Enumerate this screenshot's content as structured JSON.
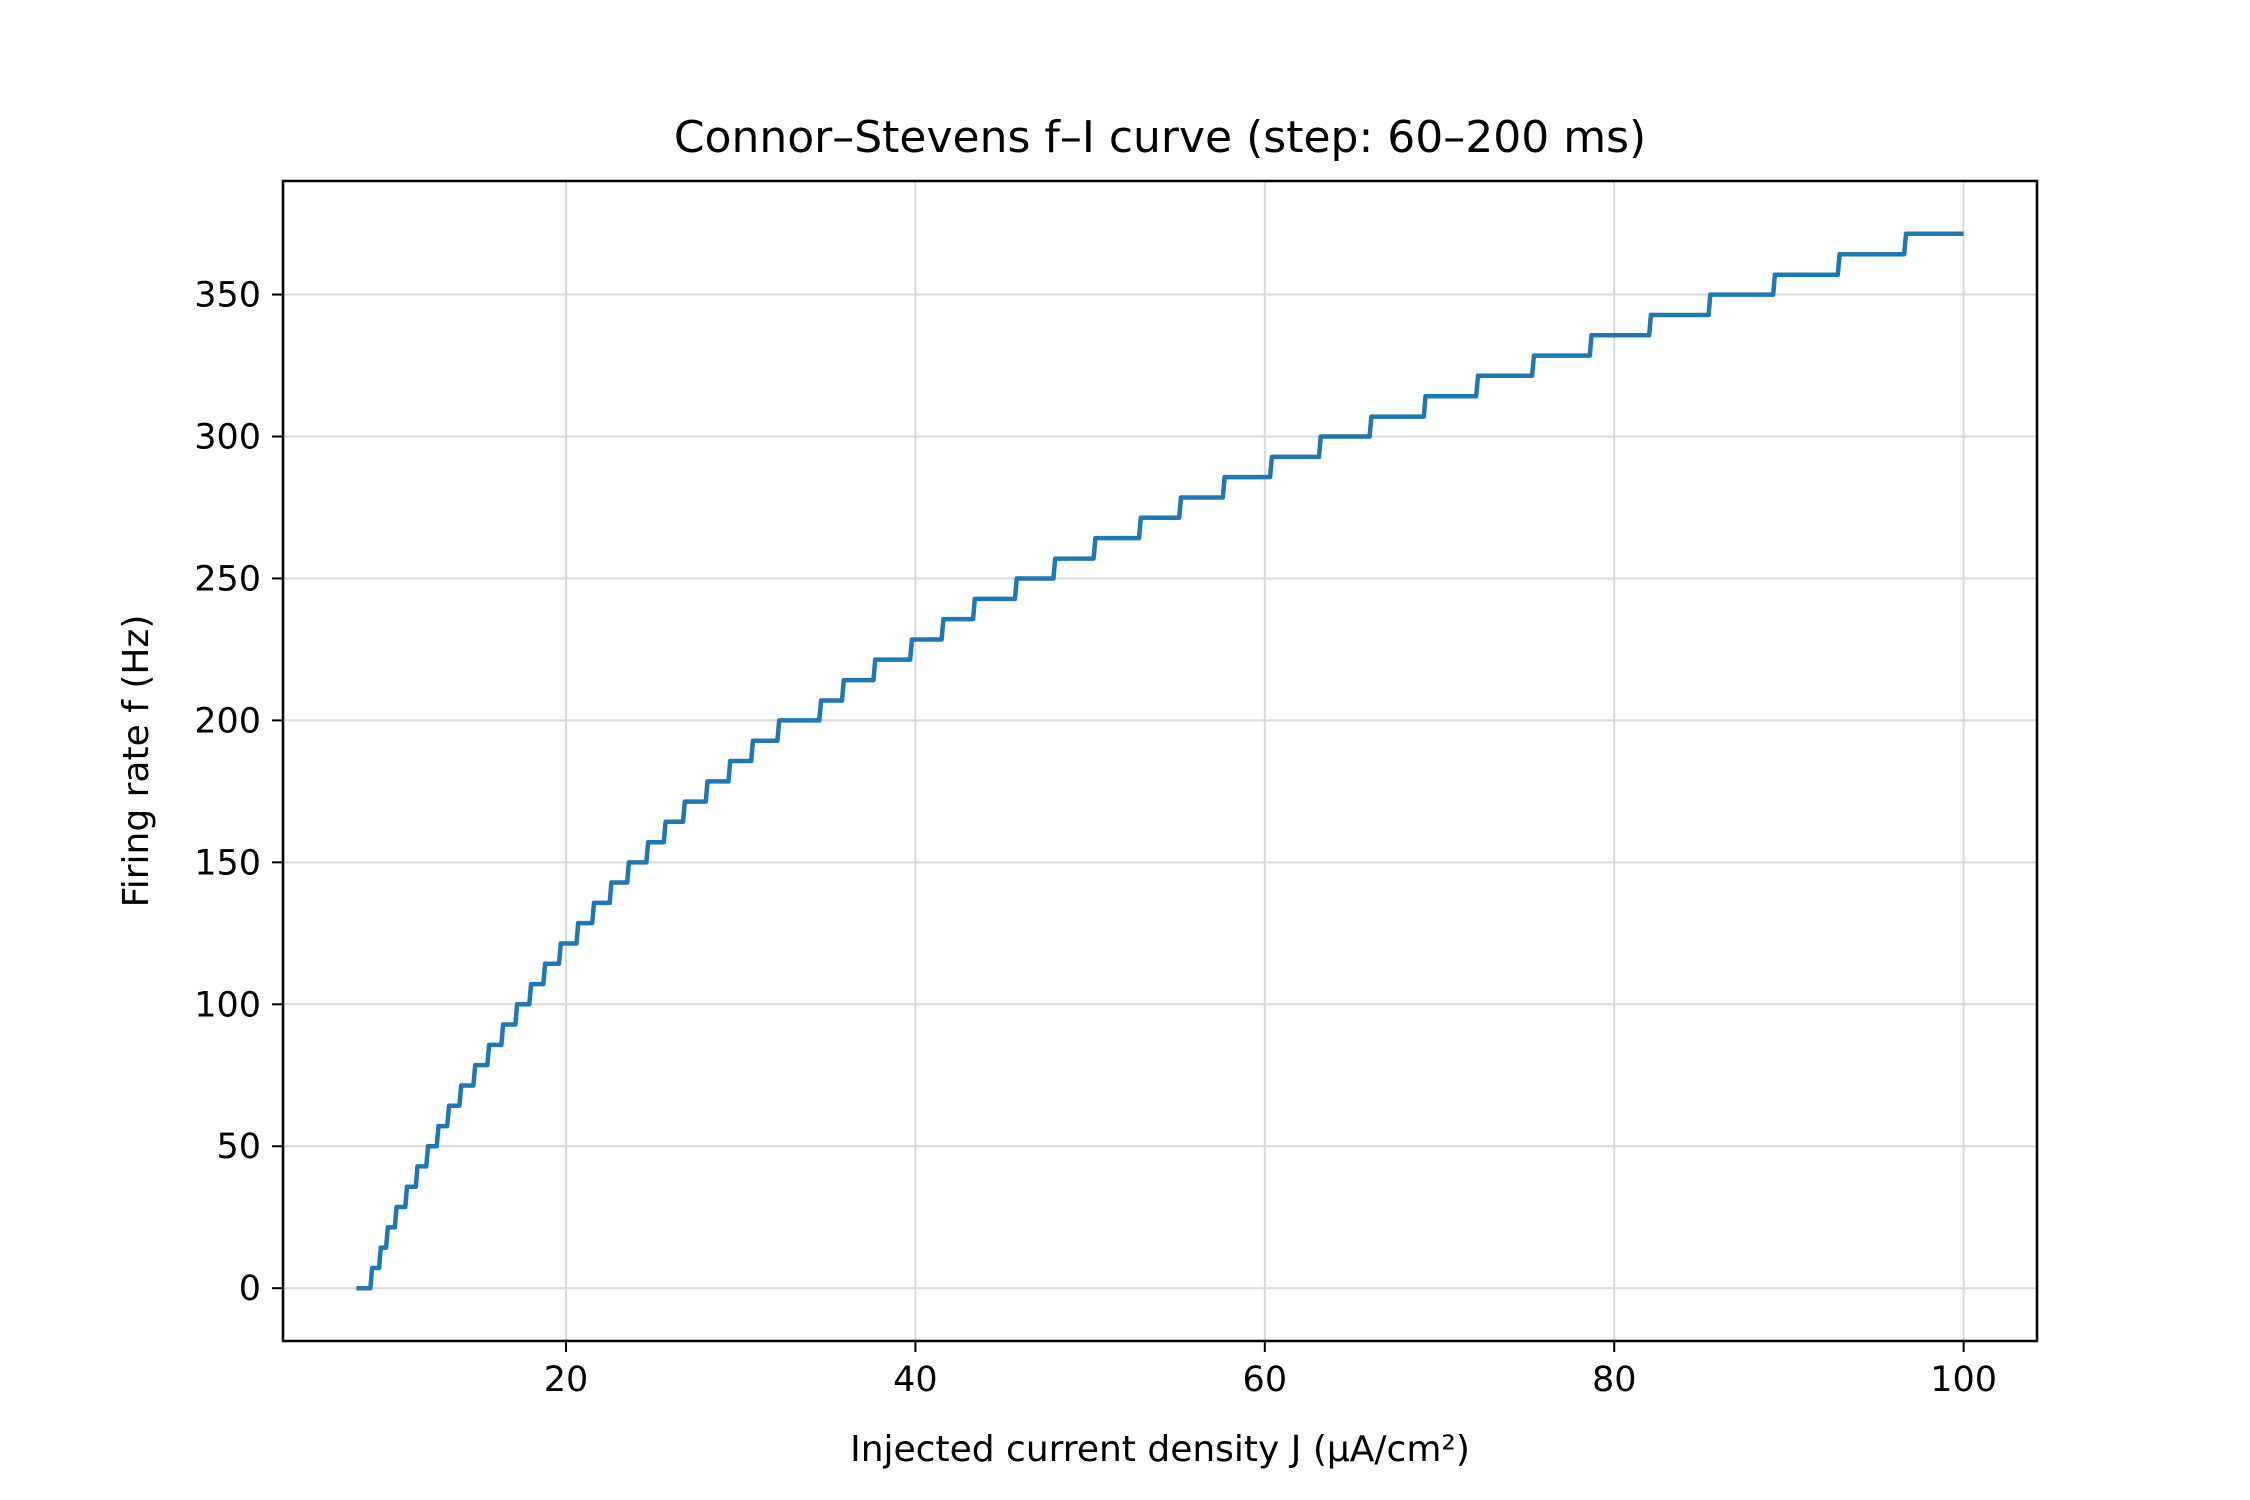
{
  "chart_data": {
    "type": "line",
    "title": "Connor–Stevens f–I curve (step: 60–200 ms)",
    "xlabel": "Injected current density J (μA/cm²)",
    "ylabel": "Firing rate f (Hz)",
    "xlim": [
      3.8,
      104.2
    ],
    "ylim": [
      -18.6,
      390
    ],
    "xticks": [
      20,
      40,
      60,
      80,
      100
    ],
    "yticks": [
      0,
      50,
      100,
      150,
      200,
      250,
      300,
      350
    ],
    "grid": true,
    "series_color": "#1f77b4",
    "series": [
      {
        "points": [
          [
            8.0,
            0
          ],
          [
            8.8,
            0
          ],
          [
            8.9,
            7.1
          ],
          [
            9.3,
            7.1
          ],
          [
            9.4,
            14.3
          ],
          [
            9.7,
            14.3
          ],
          [
            9.8,
            21.4
          ],
          [
            10.2,
            21.4
          ],
          [
            10.3,
            28.6
          ],
          [
            10.8,
            28.6
          ],
          [
            10.9,
            35.7
          ],
          [
            11.4,
            35.7
          ],
          [
            11.5,
            42.9
          ],
          [
            12.0,
            42.9
          ],
          [
            12.1,
            50.0
          ],
          [
            12.6,
            50.0
          ],
          [
            12.7,
            57.1
          ],
          [
            13.2,
            57.1
          ],
          [
            13.3,
            64.3
          ],
          [
            13.9,
            64.3
          ],
          [
            14.0,
            71.4
          ],
          [
            14.7,
            71.4
          ],
          [
            14.8,
            78.6
          ],
          [
            15.5,
            78.6
          ],
          [
            15.6,
            85.7
          ],
          [
            16.3,
            85.7
          ],
          [
            16.4,
            92.9
          ],
          [
            17.1,
            92.9
          ],
          [
            17.2,
            100.0
          ],
          [
            17.9,
            100.0
          ],
          [
            18.0,
            107.1
          ],
          [
            18.7,
            107.1
          ],
          [
            18.8,
            114.3
          ],
          [
            19.6,
            114.3
          ],
          [
            19.7,
            121.4
          ],
          [
            20.6,
            121.4
          ],
          [
            20.7,
            128.6
          ],
          [
            21.5,
            128.6
          ],
          [
            21.6,
            135.7
          ],
          [
            22.5,
            135.7
          ],
          [
            22.6,
            142.9
          ],
          [
            23.5,
            142.9
          ],
          [
            23.6,
            150.0
          ],
          [
            24.6,
            150.0
          ],
          [
            24.7,
            157.1
          ],
          [
            25.6,
            157.1
          ],
          [
            25.7,
            164.3
          ],
          [
            26.7,
            164.3
          ],
          [
            26.8,
            171.4
          ],
          [
            28.0,
            171.4
          ],
          [
            28.1,
            178.5
          ],
          [
            29.3,
            178.5
          ],
          [
            29.4,
            185.7
          ],
          [
            30.6,
            185.7
          ],
          [
            30.7,
            192.8
          ],
          [
            32.1,
            192.8
          ],
          [
            32.2,
            200.0
          ],
          [
            34.5,
            200.0
          ],
          [
            34.6,
            207.0
          ],
          [
            35.8,
            207.0
          ],
          [
            35.9,
            214.2
          ],
          [
            37.6,
            214.2
          ],
          [
            37.7,
            221.4
          ],
          [
            39.7,
            221.4
          ],
          [
            39.8,
            228.5
          ],
          [
            41.5,
            228.5
          ],
          [
            41.6,
            235.7
          ],
          [
            43.3,
            235.7
          ],
          [
            43.4,
            242.8
          ],
          [
            45.7,
            242.8
          ],
          [
            45.8,
            250.0
          ],
          [
            47.9,
            250.0
          ],
          [
            48.0,
            257.0
          ],
          [
            50.2,
            257.0
          ],
          [
            50.3,
            264.2
          ],
          [
            52.8,
            264.2
          ],
          [
            52.9,
            271.4
          ],
          [
            55.1,
            271.4
          ],
          [
            55.2,
            278.5
          ],
          [
            57.6,
            278.5
          ],
          [
            57.7,
            285.7
          ],
          [
            60.3,
            285.7
          ],
          [
            60.4,
            292.8
          ],
          [
            63.1,
            292.8
          ],
          [
            63.2,
            300.0
          ],
          [
            66.0,
            300.0
          ],
          [
            66.1,
            307.0
          ],
          [
            69.1,
            307.0
          ],
          [
            69.2,
            314.2
          ],
          [
            72.1,
            314.2
          ],
          [
            72.2,
            321.4
          ],
          [
            75.3,
            321.4
          ],
          [
            75.4,
            328.5
          ],
          [
            78.6,
            328.5
          ],
          [
            78.7,
            335.7
          ],
          [
            82.0,
            335.7
          ],
          [
            82.1,
            342.8
          ],
          [
            85.4,
            342.8
          ],
          [
            85.5,
            350.0
          ],
          [
            89.1,
            350.0
          ],
          [
            89.2,
            357.0
          ],
          [
            92.8,
            357.0
          ],
          [
            92.9,
            364.2
          ],
          [
            96.6,
            364.2
          ],
          [
            96.7,
            371.4
          ],
          [
            100.0,
            371.4
          ]
        ]
      }
    ]
  }
}
